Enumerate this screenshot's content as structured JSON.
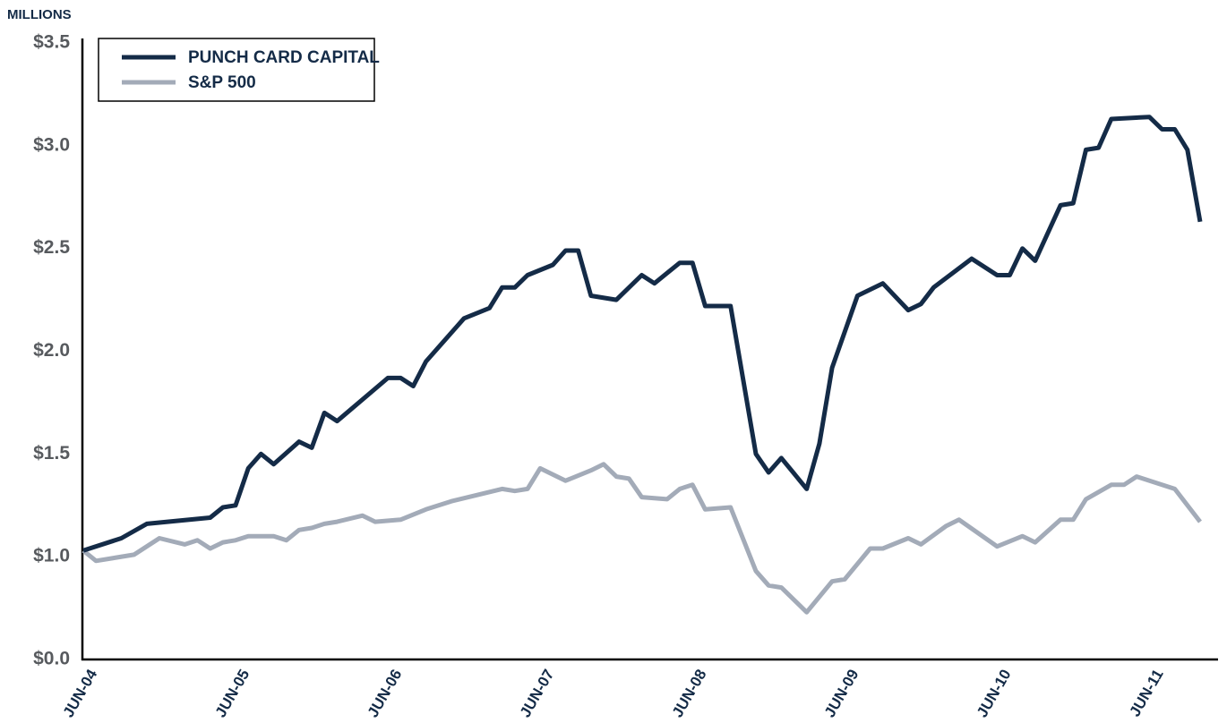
{
  "chart_data": {
    "type": "line",
    "y_axis_label": "MILLIONS",
    "ylim": [
      0.5,
      3.5
    ],
    "axis_break": true,
    "yticks": [
      {
        "value": 0,
        "label": "$0.0"
      },
      {
        "value": 1.0,
        "label": "$1.0"
      },
      {
        "value": 1.5,
        "label": "$1.5"
      },
      {
        "value": 2.0,
        "label": "$2.0"
      },
      {
        "value": 2.5,
        "label": "$2.5"
      },
      {
        "value": 3.0,
        "label": "$3.0"
      },
      {
        "value": 3.5,
        "label": "$3.5"
      }
    ],
    "xlim": [
      "2004-06",
      "2011-10"
    ],
    "xticks": [
      {
        "value": "2004-06",
        "label": "JUN-04"
      },
      {
        "value": "2005-06",
        "label": "JUN-05"
      },
      {
        "value": "2006-06",
        "label": "JUN-06"
      },
      {
        "value": "2007-06",
        "label": "JUN-07"
      },
      {
        "value": "2008-06",
        "label": "JUN-08"
      },
      {
        "value": "2009-06",
        "label": "JUN-09"
      },
      {
        "value": "2010-06",
        "label": "JUN-10"
      },
      {
        "value": "2011-06",
        "label": "JUN-11"
      }
    ],
    "grid": false,
    "legend": "upper left",
    "series": [
      {
        "name": "PUNCH CARD CAPITAL",
        "color": "#142b47",
        "x": [
          "2004-06",
          "2004-09",
          "2004-11",
          "2005-04",
          "2005-05",
          "2005-06",
          "2005-07",
          "2005-08",
          "2005-09",
          "2005-11",
          "2005-12",
          "2006-01",
          "2006-02",
          "2006-06",
          "2006-07",
          "2006-08",
          "2006-09",
          "2006-12",
          "2007-02",
          "2007-03",
          "2007-04",
          "2007-05",
          "2007-07",
          "2007-08",
          "2007-09",
          "2007-10",
          "2007-12",
          "2008-02",
          "2008-03",
          "2008-04",
          "2008-05",
          "2008-06",
          "2008-07",
          "2008-09",
          "2008-11",
          "2008-12",
          "2009-01",
          "2009-03",
          "2009-04",
          "2009-05",
          "2009-07",
          "2009-09",
          "2009-11",
          "2009-12",
          "2010-01",
          "2010-04",
          "2010-06",
          "2010-07",
          "2010-08",
          "2010-09",
          "2010-11",
          "2010-12",
          "2011-01",
          "2011-02",
          "2011-03",
          "2011-06",
          "2011-07",
          "2011-08",
          "2011-09",
          "2011-10"
        ],
        "values": [
          1.03,
          1.09,
          1.16,
          1.19,
          1.24,
          1.25,
          1.43,
          1.5,
          1.45,
          1.56,
          1.53,
          1.7,
          1.66,
          1.87,
          1.87,
          1.83,
          1.95,
          2.16,
          2.21,
          2.31,
          2.31,
          2.37,
          2.42,
          2.49,
          2.49,
          2.27,
          2.25,
          2.37,
          2.33,
          2.38,
          2.43,
          2.43,
          2.22,
          2.22,
          1.5,
          1.41,
          1.48,
          1.33,
          1.55,
          1.92,
          2.27,
          2.33,
          2.2,
          2.23,
          2.31,
          2.45,
          2.37,
          2.37,
          2.5,
          2.44,
          2.71,
          2.72,
          2.98,
          2.99,
          3.13,
          3.14,
          3.08,
          3.08,
          2.98,
          2.63
        ]
      },
      {
        "name": "S&P 500",
        "color": "#a3abb8",
        "x": [
          "2004-06",
          "2004-07",
          "2004-10",
          "2004-12",
          "2005-02",
          "2005-03",
          "2005-04",
          "2005-05",
          "2005-06",
          "2005-07",
          "2005-09",
          "2005-10",
          "2005-11",
          "2005-12",
          "2006-01",
          "2006-02",
          "2006-04",
          "2006-05",
          "2006-07",
          "2006-09",
          "2006-11",
          "2007-01",
          "2007-03",
          "2007-04",
          "2007-05",
          "2007-06",
          "2007-08",
          "2007-10",
          "2007-11",
          "2007-12",
          "2008-01",
          "2008-02",
          "2008-04",
          "2008-05",
          "2008-06",
          "2008-07",
          "2008-09",
          "2008-11",
          "2008-12",
          "2009-01",
          "2009-03",
          "2009-05",
          "2009-06",
          "2009-08",
          "2009-09",
          "2009-11",
          "2009-12",
          "2010-02",
          "2010-03",
          "2010-06",
          "2010-08",
          "2010-09",
          "2010-11",
          "2010-12",
          "2011-01",
          "2011-03",
          "2011-04",
          "2011-05",
          "2011-08",
          "2011-10"
        ],
        "values": [
          1.03,
          0.98,
          1.01,
          1.09,
          1.06,
          1.08,
          1.04,
          1.07,
          1.08,
          1.1,
          1.1,
          1.08,
          1.13,
          1.14,
          1.16,
          1.17,
          1.2,
          1.17,
          1.18,
          1.23,
          1.27,
          1.3,
          1.33,
          1.32,
          1.33,
          1.43,
          1.37,
          1.42,
          1.45,
          1.39,
          1.38,
          1.29,
          1.28,
          1.33,
          1.35,
          1.23,
          1.24,
          0.93,
          0.86,
          0.85,
          0.73,
          0.88,
          0.89,
          1.04,
          1.04,
          1.09,
          1.06,
          1.15,
          1.18,
          1.05,
          1.1,
          1.07,
          1.18,
          1.18,
          1.28,
          1.35,
          1.35,
          1.39,
          1.33,
          1.17
        ]
      }
    ]
  }
}
